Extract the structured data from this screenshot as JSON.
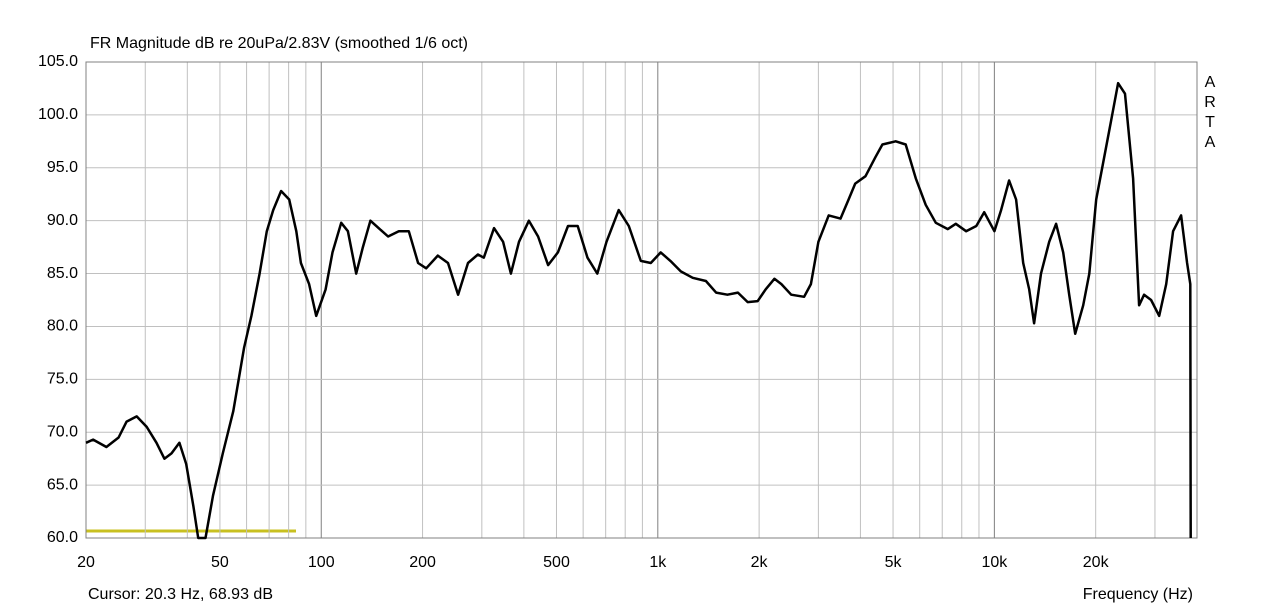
{
  "chart_data": {
    "type": "line",
    "title": "FR Magnitude dB re 20uPa/2.83V (smoothed 1/6 oct)",
    "x_label": "Frequency (Hz)",
    "cursor_label": "Cursor: 20.3 Hz, 68.93 dB",
    "watermark": "ARTA",
    "log_x": true,
    "grid": true,
    "color": "#000000",
    "xlim": [
      20,
      40000
    ],
    "ylim": [
      60,
      105
    ],
    "xticks": [
      20,
      50,
      100,
      200,
      500,
      {
        "value": 1000,
        "label": "1k"
      },
      {
        "value": 2000,
        "label": "2k"
      },
      {
        "value": 5000,
        "label": "5k"
      },
      {
        "value": 10000,
        "label": "10k"
      },
      {
        "value": 20000,
        "label": "20k"
      }
    ],
    "xminorticks": [
      30,
      40,
      60,
      70,
      80,
      90,
      300,
      400,
      600,
      700,
      800,
      900,
      3000,
      4000,
      6000,
      7000,
      8000,
      9000,
      30000
    ],
    "yticks": [
      {
        "value": 60,
        "label": "60.0"
      },
      {
        "value": 65,
        "label": "65.0"
      },
      {
        "value": 70,
        "label": "70.0"
      },
      {
        "value": 75,
        "label": "75.0"
      },
      {
        "value": 80,
        "label": "80.0"
      },
      {
        "value": 85,
        "label": "85.0"
      },
      {
        "value": 90,
        "label": "90.0"
      },
      {
        "value": 95,
        "label": "95.0"
      },
      {
        "value": 100,
        "label": "100.0"
      },
      {
        "value": 105,
        "label": "105.0"
      }
    ],
    "x": [
      20,
      21,
      23,
      25,
      26.4,
      28.3,
      30.3,
      32.4,
      34.2,
      35.9,
      37.9,
      39.7,
      41.7,
      43.1,
      45.3,
      47.7,
      51,
      54.8,
      59,
      62,
      65.6,
      68.9,
      72,
      76,
      80.3,
      84.3,
      87,
      92,
      96.6,
      103,
      108,
      114.6,
      120,
      127,
      133,
      140,
      148,
      158,
      170,
      182,
      194,
      205,
      222,
      238,
      255,
      273,
      292,
      304,
      326,
      347,
      366,
      387,
      414,
      441,
      472,
      505,
      541,
      578,
      618,
      661,
      704,
      765,
      820,
      890,
      953,
      1020,
      1090,
      1170,
      1270,
      1390,
      1490,
      1610,
      1730,
      1850,
      1980,
      2090,
      2220,
      2330,
      2490,
      2720,
      2850,
      3000,
      3220,
      3490,
      3690,
      3860,
      4140,
      4430,
      4650,
      5090,
      5450,
      5840,
      6250,
      6700,
      7270,
      7680,
      8240,
      8840,
      9330,
      10000,
      10470,
      11060,
      11600,
      12180,
      12690,
      13120,
      13760,
      14550,
      15260,
      16010,
      16680,
      17380,
      18360,
      19140,
      20070,
      21050,
      22240,
      23320,
      24450,
      25830,
      26920,
      27860,
      29230,
      30880,
      32390,
      33960,
      35880,
      37390,
      38200,
      38300
    ],
    "values": [
      69,
      69.3,
      68.6,
      69.5,
      71,
      71.5,
      70.5,
      69,
      67.5,
      68,
      69,
      67,
      63,
      60,
      60,
      64,
      68,
      72,
      78,
      81,
      85,
      89,
      91,
      92.8,
      92,
      89,
      86,
      84,
      81,
      83.5,
      87,
      89.8,
      89,
      85,
      87.5,
      90,
      89.3,
      88.5,
      89,
      89,
      86,
      85.5,
      86.7,
      86,
      83,
      86,
      86.8,
      86.5,
      89.3,
      88,
      85,
      88,
      90,
      88.5,
      85.8,
      87,
      89.5,
      89.5,
      86.5,
      85,
      88,
      91,
      89.5,
      86.2,
      86,
      87,
      86.2,
      85.2,
      84.6,
      84.3,
      83.2,
      83,
      83.2,
      82.3,
      82.4,
      83.5,
      84.5,
      84,
      83,
      82.8,
      84,
      88,
      90.5,
      90.2,
      92,
      93.5,
      94.2,
      96,
      97.2,
      97.5,
      97.2,
      94,
      91.5,
      89.8,
      89.2,
      89.7,
      89,
      89.5,
      90.8,
      89,
      91,
      93.8,
      92,
      86,
      83.5,
      80.3,
      85,
      88,
      89.7,
      87,
      83,
      79.3,
      82,
      85,
      92,
      95.5,
      99.5,
      103,
      102,
      94,
      82,
      83,
      82.5,
      81,
      84,
      89,
      90.5,
      86,
      84,
      60
    ]
  }
}
